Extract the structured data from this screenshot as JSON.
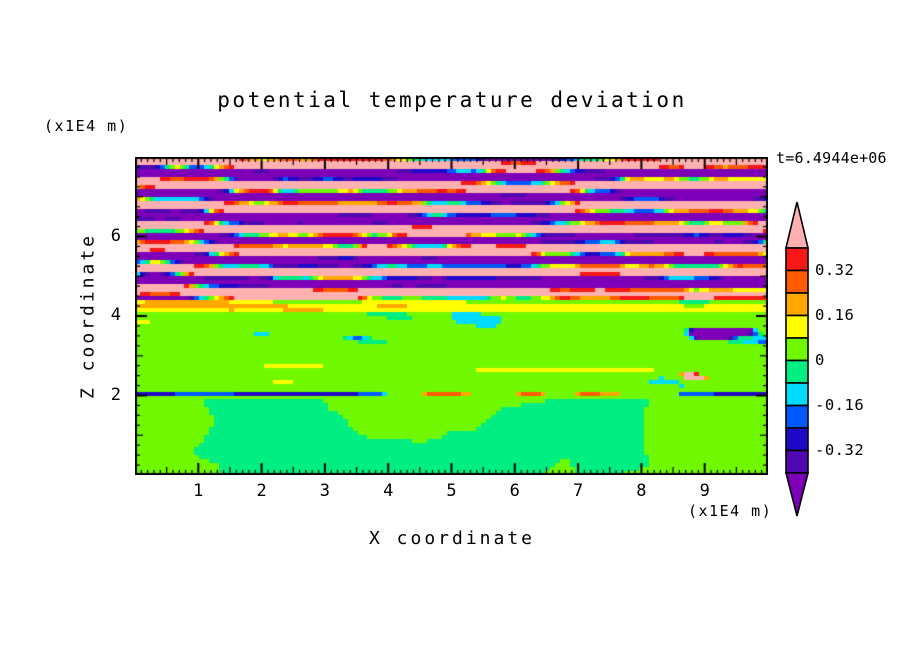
{
  "chart_data": {
    "type": "heatmap",
    "title": "potential temperature deviation",
    "time_annotation": "t=6.4944e+06",
    "xlabel": "X coordinate",
    "ylabel": "Z coordinate",
    "x_unit_label": "(x1E4 m)",
    "y_unit_label": "(x1E4 m)",
    "xlim": [
      0,
      10
    ],
    "ylim": [
      0,
      8
    ],
    "x_major_ticks": [
      1,
      2,
      3,
      4,
      5,
      6,
      7,
      8,
      9
    ],
    "x_minor_step": 0.1,
    "y_major_ticks": [
      2,
      4,
      6
    ],
    "y_minor_step": 0.25,
    "grid": false,
    "legend_position": "right-colorbar-with-arrow-ends",
    "colorbar": {
      "tick_labels": [
        "0.32",
        "0.16",
        "0",
        "-0.16",
        "-0.32"
      ],
      "levels": [
        -0.4,
        -0.32,
        -0.24,
        -0.16,
        -0.08,
        0,
        0.08,
        0.16,
        0.24,
        0.32,
        0.4
      ],
      "band_colors_low_to_high": [
        "#5008B0",
        "#2008C8",
        "#0058FF",
        "#00DCFF",
        "#00EE82",
        "#70F800",
        "#FFFF00",
        "#FFA800",
        "#FF5A00",
        "#F81818"
      ],
      "under_color": "#7D00B8",
      "over_color": "#FFB0B0"
    },
    "field_description": "Vertical cross-section of potential temperature deviation at t=6.4944e+06. Upper layer (z approx 4.5-8 x1E4 m): stacked wavy horizontal gravity-wave bands alternating strong positive (pink, >0.4) and strong negative (purple, <-0.4) deviation, separated by thin rainbow contour filaments with turbulent red/orange/cyan/blue patches, most intense for z 4.5-6. Thin striped transition layer z approx 4.1-4.45 with full-width yellow and yellow-green streaks plus scattered intrusions. Interior z approx 2.1-4.1: weak deviation, yellow-green (0 to 0.08) with spring-green (-0.08 to 0) patches, purple/navy blobs near z 3.3-4.1 and faint yellow lines. Sharp inversion line at z approx 2 with alternating warm (red/orange/yellow, locally pink) and cold (navy/blue/cyan) pockets. Convective layer z<2: spring-green background with large rounded yellow-green plumes and a yellow-green cap just below the inversion.",
    "procedural_field": {
      "seed": 7,
      "wave_base_z": 4.45,
      "wave_pair_wavelength_z": 0.55,
      "transition_z": [
        4.1,
        4.45
      ],
      "inversion_z": [
        1.96,
        2.1
      ],
      "inversion_center_z": 2.03,
      "convective_top_z": 1.96
    }
  }
}
